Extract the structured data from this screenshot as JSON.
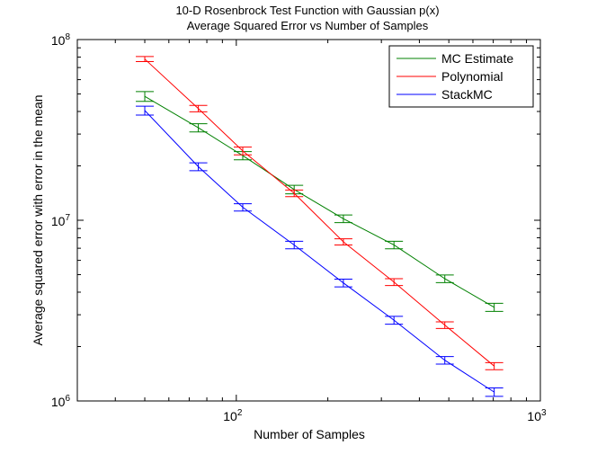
{
  "chart_data": {
    "type": "line",
    "title": "10-D Rosenbrock Test Function with Gaussian p(x)",
    "subtitle": "Average Squared Error vs Number of Samples",
    "xlabel": "Number of Samples",
    "ylabel": "Average squared error with error in the mean",
    "x_scale": "log",
    "y_scale": "log",
    "xlim": [
      30,
      1000
    ],
    "ylim": [
      1000000,
      100000000
    ],
    "grid": false,
    "legend_position": "top-right",
    "x_ticks": [
      {
        "value": 100,
        "base": "10",
        "exp": "2"
      },
      {
        "value": 1000,
        "base": "10",
        "exp": "3"
      }
    ],
    "y_ticks": [
      {
        "value": 1000000,
        "base": "10",
        "exp": "6"
      },
      {
        "value": 10000000,
        "base": "10",
        "exp": "7"
      },
      {
        "value": 100000000,
        "base": "10",
        "exp": "8"
      }
    ],
    "x": [
      50,
      75,
      105,
      155,
      225,
      330,
      485,
      705
    ],
    "series": [
      {
        "name": "MC Estimate",
        "color": "#008000",
        "values": [
          48500000,
          32500000,
          22800000,
          14800000,
          10200000,
          7300000,
          4750000,
          3300000
        ],
        "errors": [
          3000000,
          1700000,
          1200000,
          800000,
          500000,
          350000,
          230000,
          170000
        ]
      },
      {
        "name": "Polynomial",
        "color": "#ff0000",
        "values": [
          78000000,
          41500000,
          24200000,
          14100000,
          7600000,
          4550000,
          2630000,
          1560000
        ],
        "errors": [
          2500000,
          1700000,
          1200000,
          600000,
          300000,
          200000,
          110000,
          70000
        ]
      },
      {
        "name": "StackMC",
        "color": "#0000ff",
        "values": [
          40500000,
          19800000,
          11800000,
          7300000,
          4500000,
          2800000,
          1680000,
          1120000
        ],
        "errors": [
          2300000,
          1000000,
          550000,
          350000,
          220000,
          140000,
          80000,
          60000
        ]
      }
    ]
  }
}
